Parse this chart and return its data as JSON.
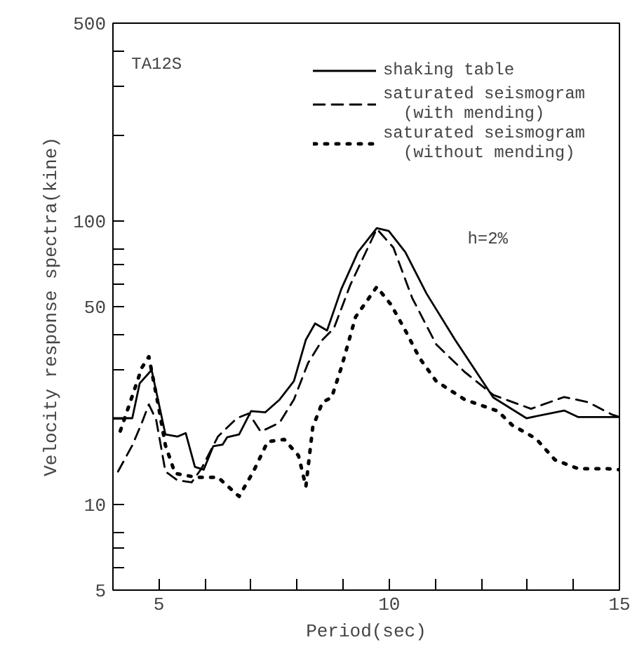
{
  "chart_data": {
    "type": "line",
    "xlabel": "Period(sec)",
    "ylabel": "Velocity response spectra(kine)",
    "log": "y",
    "grid": false,
    "legend": "top right",
    "marker": "none",
    "xlim": [
      4,
      15
    ],
    "ylim": [
      5,
      500
    ],
    "xticks": [
      5,
      {
        "value": 6,
        "label": null
      },
      {
        "value": 7,
        "label": null
      },
      {
        "value": 8,
        "label": null
      },
      {
        "value": 9,
        "label": null
      },
      10,
      {
        "value": 11,
        "label": null
      },
      {
        "value": 12,
        "label": null
      },
      {
        "value": 13,
        "label": null
      },
      {
        "value": 14,
        "label": null
      },
      15
    ],
    "yticks": [
      5,
      {
        "value": 6,
        "label": null
      },
      {
        "value": 7,
        "label": null
      },
      {
        "value": 8,
        "label": null
      },
      10,
      {
        "value": 20,
        "label": null
      },
      {
        "value": 30,
        "label": null
      },
      {
        "value": 40,
        "label": null
      },
      50,
      {
        "value": 60,
        "label": null
      },
      {
        "value": 70,
        "label": null
      },
      {
        "value": 80,
        "label": null
      },
      100,
      {
        "value": 200,
        "label": null
      },
      {
        "value": 300,
        "label": null
      },
      {
        "value": 400,
        "label": null
      },
      500
    ],
    "annotations": [
      "TA12S",
      "h=2%"
    ],
    "series": [
      {
        "name": "shaking table",
        "color": "#000000",
        "line_style": "solid",
        "x": [
          4.0,
          4.42,
          4.58,
          4.84,
          5.14,
          5.4,
          5.58,
          5.78,
          5.97,
          6.18,
          6.38,
          6.48,
          6.74,
          7.0,
          7.31,
          7.62,
          7.93,
          8.19,
          8.39,
          8.65,
          8.96,
          9.32,
          9.73,
          9.99,
          10.35,
          10.81,
          11.43,
          12.26,
          12.98,
          13.8,
          14.1,
          15.0
        ],
        "values": [
          20.2,
          20.2,
          26.8,
          29.9,
          17.7,
          17.4,
          17.9,
          13.6,
          13.3,
          16.1,
          16.3,
          17.3,
          17.7,
          21.4,
          21.2,
          23.5,
          27.3,
          38.2,
          43.6,
          41.2,
          57.7,
          77.8,
          94.6,
          92.5,
          77.8,
          55.6,
          38.2,
          23.9,
          20.2,
          21.5,
          20.4,
          20.4
        ]
      },
      {
        "name": "saturated seismogram\n  (with mending)",
        "color": "#000000",
        "line_style": "dashed",
        "x": [
          4.11,
          4.42,
          4.63,
          4.78,
          4.94,
          5.14,
          5.4,
          5.71,
          5.92,
          6.28,
          6.69,
          6.95,
          7.21,
          7.62,
          7.93,
          8.24,
          8.55,
          8.8,
          9.16,
          9.73,
          10.09,
          10.5,
          11.02,
          11.64,
          12.26,
          13.08,
          13.8,
          14.32,
          14.84,
          15.0
        ],
        "values": [
          13.1,
          16.2,
          19.5,
          22.6,
          19.9,
          13.1,
          12.2,
          12.0,
          13.4,
          17.4,
          20.2,
          21.0,
          18.1,
          19.5,
          23.5,
          31.7,
          38.2,
          42.0,
          59.9,
          94,
          80.8,
          53.6,
          36.8,
          29.4,
          24.4,
          21.8,
          24.0,
          23.0,
          20.8,
          20.4
        ]
      },
      {
        "name": "saturated seismogram\n  (without mending)",
        "color": "#000000",
        "line_style": "dotted",
        "x": [
          4.16,
          4.63,
          4.78,
          4.99,
          5.14,
          5.35,
          5.81,
          6.28,
          6.74,
          7.05,
          7.36,
          7.72,
          8.03,
          8.19,
          8.34,
          8.55,
          8.75,
          8.96,
          9.27,
          9.73,
          10.04,
          10.35,
          10.66,
          11.02,
          11.64,
          12.36,
          12.67,
          13.19,
          13.6,
          14.11,
          14.73,
          14.99
        ],
        "values": [
          18.2,
          30.5,
          33.3,
          22.2,
          16.2,
          12.9,
          12.5,
          12.5,
          10.7,
          13.1,
          16.7,
          17.0,
          14.9,
          11.6,
          18.8,
          23.0,
          23.9,
          30.5,
          46.0,
          58.7,
          50.8,
          41.2,
          32.9,
          27.3,
          23.5,
          21.4,
          19.1,
          17.1,
          14.4,
          13.4,
          13.4,
          13.3
        ]
      }
    ]
  }
}
